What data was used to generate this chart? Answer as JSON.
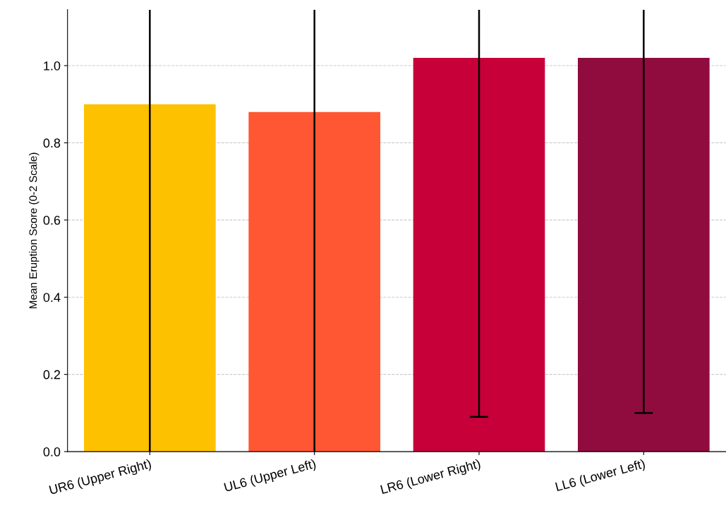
{
  "chart_data": {
    "type": "bar",
    "ylabel": "Mean Eruption Score (0-2 Scale)",
    "categories": [
      "UR6 (Upper Right)",
      "UL6 (Upper Left)",
      "LR6 (Lower Right)",
      "LL6 (Lower Left)"
    ],
    "values": [
      0.9,
      0.88,
      1.02,
      1.02
    ],
    "colors": [
      "#fdc100",
      "#ff5733",
      "#c70039",
      "#900c3f"
    ],
    "errors": [
      [
        0,
        1.145
      ],
      [
        0,
        1.145
      ],
      [
        0.09,
        1.145
      ],
      [
        0.1,
        1.145
      ]
    ],
    "ylim": [
      0,
      1.145
    ],
    "yticks": [
      {
        "value": 0,
        "label": "0.0"
      },
      {
        "value": 0.2,
        "label": "0.2"
      },
      {
        "value": 0.4,
        "label": "0.4"
      },
      {
        "value": 0.6,
        "label": "0.6"
      },
      {
        "value": 0.8,
        "label": "0.8"
      },
      {
        "value": 1.0,
        "label": "1.0"
      }
    ],
    "grid": "y"
  }
}
